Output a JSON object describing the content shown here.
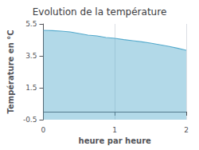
{
  "chart_data": {
    "type": "area",
    "title": "Evolution de la température",
    "xlabel": "heure par heure",
    "ylabel": "Température en °C",
    "x": [
      0,
      0.125,
      0.25,
      0.375,
      0.5,
      0.625,
      0.75,
      0.875,
      1.0,
      1.125,
      1.25,
      1.375,
      1.5,
      1.625,
      1.75,
      1.875,
      2.0
    ],
    "values": [
      5.1,
      5.08,
      5.05,
      5.0,
      4.9,
      4.8,
      4.75,
      4.65,
      4.6,
      4.52,
      4.45,
      4.38,
      4.3,
      4.2,
      4.1,
      3.98,
      3.85
    ],
    "color": "#55aacc",
    "xlim": [
      0,
      2
    ],
    "xticks": [
      0,
      1,
      2
    ],
    "ylim": [
      -0.5,
      5.5
    ],
    "yticks": [
      -0.5,
      1.5,
      3.5,
      5.5
    ],
    "grid": "x"
  }
}
